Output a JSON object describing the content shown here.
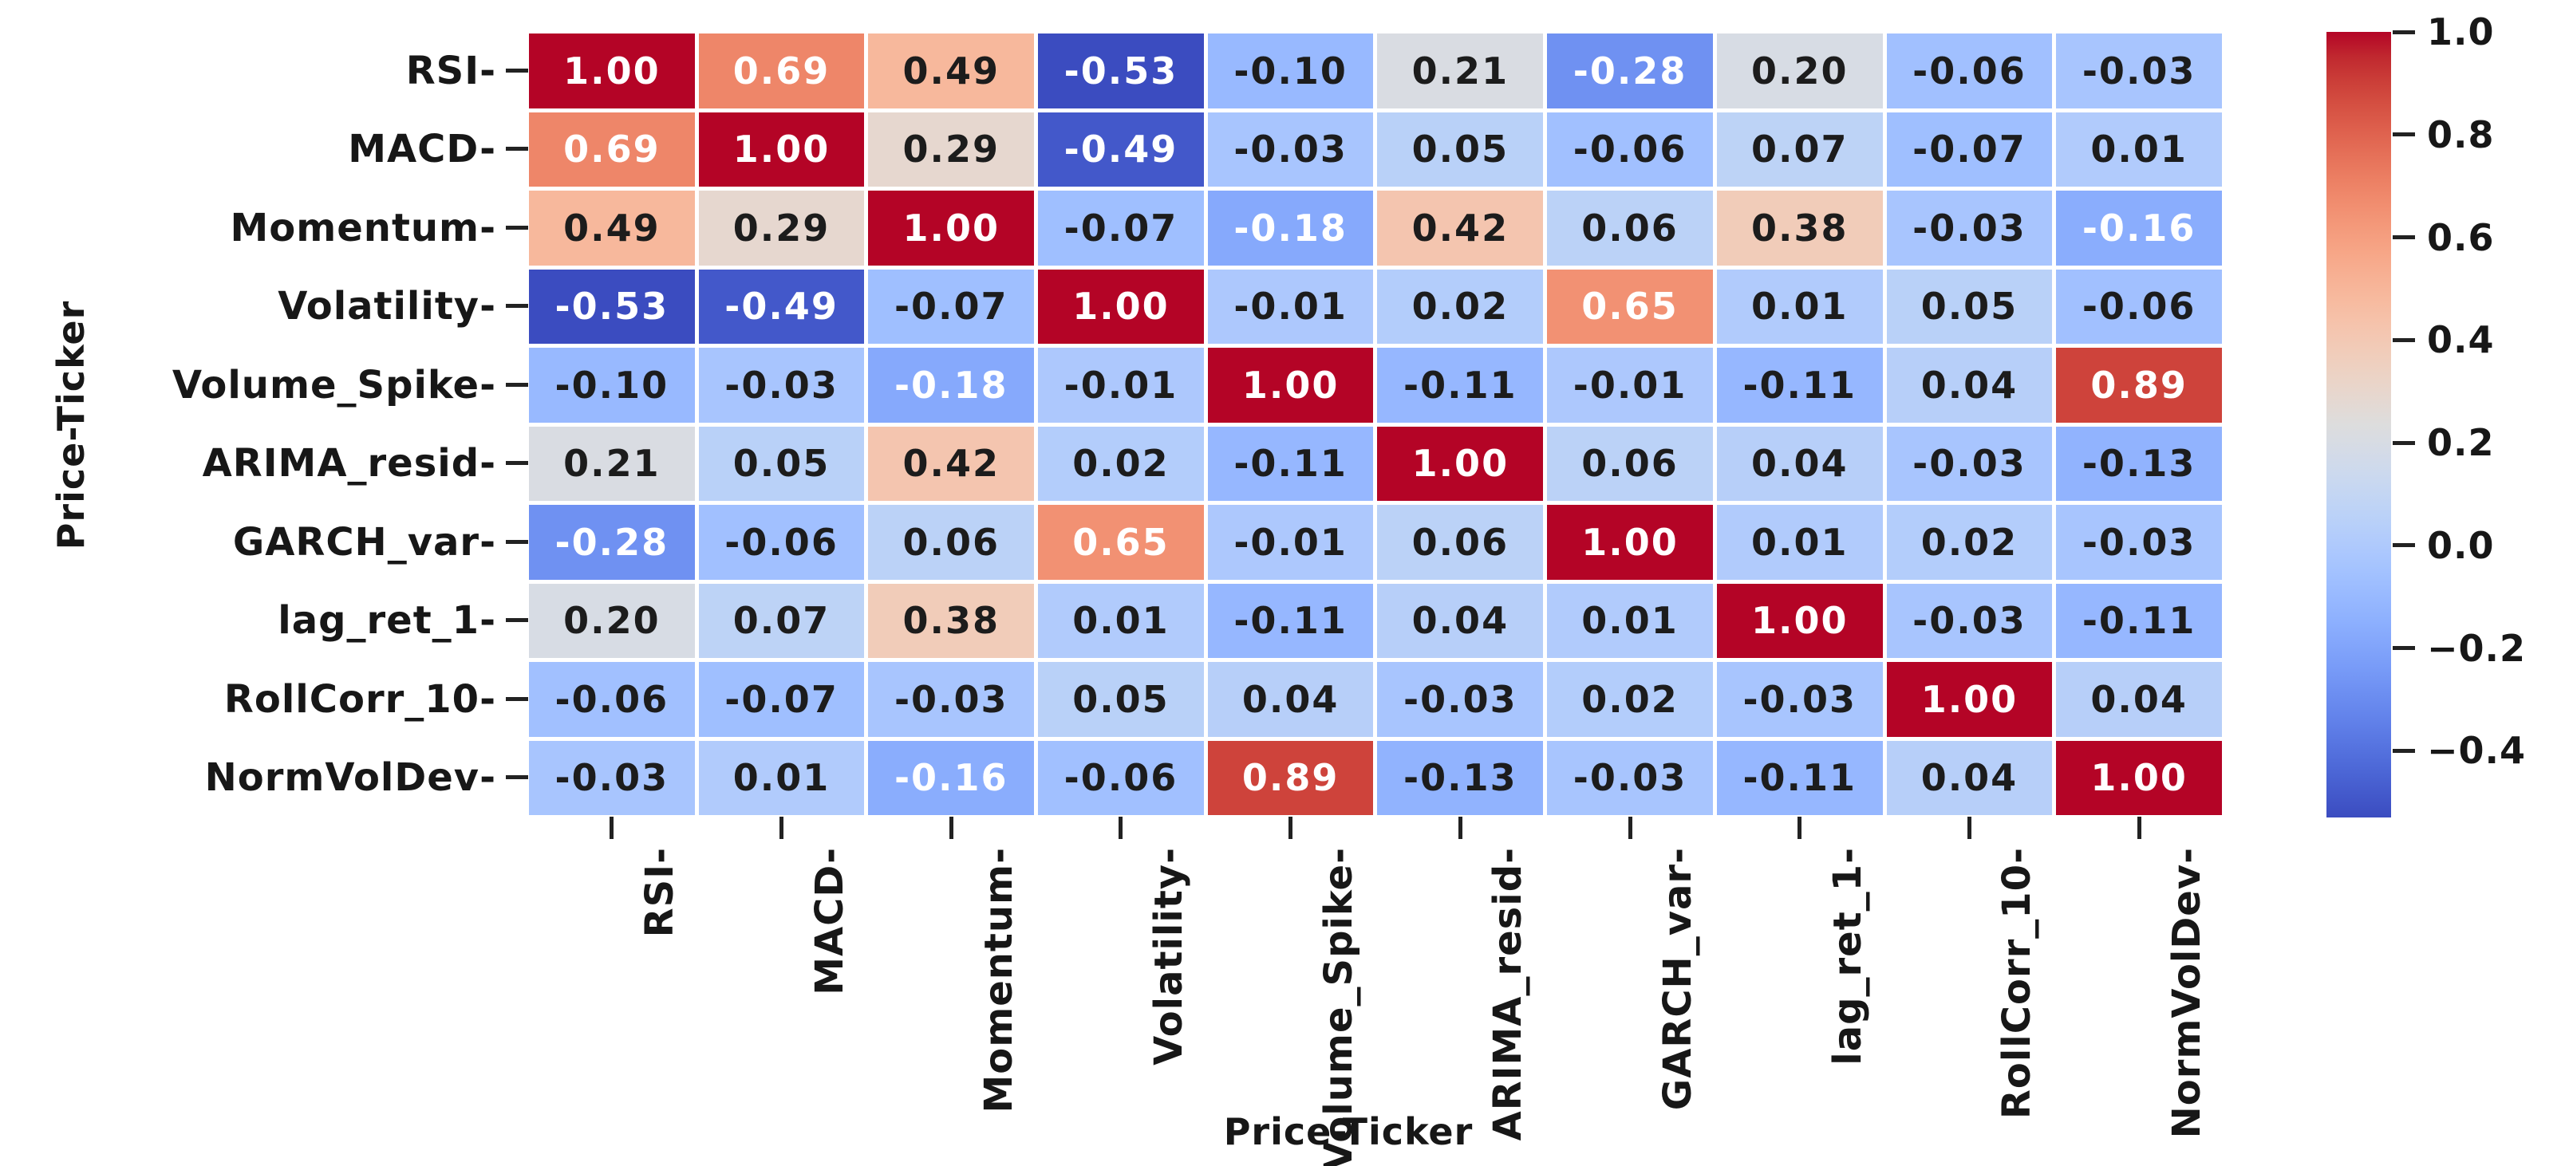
{
  "figure": {
    "background": "#ffffff"
  },
  "chart_data": {
    "type": "heatmap",
    "title": "",
    "xlabel": "Price-Ticker",
    "ylabel": "Price-Ticker",
    "x_labels": [
      "RSI-",
      "MACD-",
      "Momentum-",
      "Volatility-",
      "Volume_Spike-",
      "ARIMA_resid-",
      "GARCH_var-",
      "lag_ret_1-",
      "RollCorr_10-",
      "NormVolDev-"
    ],
    "y_labels": [
      "RSI-",
      "MACD-",
      "Momentum-",
      "Volatility-",
      "Volume_Spike-",
      "ARIMA_resid-",
      "GARCH_var-",
      "lag_ret_1-",
      "RollCorr_10-",
      "NormVolDev-"
    ],
    "matrix": [
      [
        1.0,
        0.69,
        0.49,
        -0.53,
        -0.1,
        0.21,
        -0.28,
        0.2,
        -0.06,
        -0.03
      ],
      [
        0.69,
        1.0,
        0.29,
        -0.49,
        -0.03,
        0.05,
        -0.06,
        0.07,
        -0.07,
        0.01
      ],
      [
        0.49,
        0.29,
        1.0,
        -0.07,
        -0.18,
        0.42,
        0.06,
        0.38,
        -0.03,
        -0.16
      ],
      [
        -0.53,
        -0.49,
        -0.07,
        1.0,
        -0.01,
        0.02,
        0.65,
        0.01,
        0.05,
        -0.06
      ],
      [
        -0.1,
        -0.03,
        -0.18,
        -0.01,
        1.0,
        -0.11,
        -0.01,
        -0.11,
        0.04,
        0.89
      ],
      [
        0.21,
        0.05,
        0.42,
        0.02,
        -0.11,
        1.0,
        0.06,
        0.04,
        -0.03,
        -0.13
      ],
      [
        -0.28,
        -0.06,
        0.06,
        0.65,
        -0.01,
        0.06,
        1.0,
        0.01,
        0.02,
        -0.03
      ],
      [
        0.2,
        0.07,
        0.38,
        0.01,
        -0.11,
        0.04,
        0.01,
        1.0,
        -0.03,
        -0.11
      ],
      [
        -0.06,
        -0.07,
        -0.03,
        0.05,
        0.04,
        -0.03,
        0.02,
        -0.03,
        1.0,
        0.04
      ],
      [
        -0.03,
        0.01,
        -0.16,
        -0.06,
        0.89,
        -0.13,
        -0.03,
        -0.11,
        0.04,
        1.0
      ]
    ],
    "annotation_format": "2-decimals",
    "vmin": -0.53,
    "vmax": 1.0,
    "colormap": "coolwarm",
    "grid": false,
    "colorbar": {
      "position": "right",
      "tick_values": [
        1.0,
        0.8,
        0.6,
        0.4,
        0.2,
        0.0,
        -0.2,
        -0.4
      ],
      "tick_labels": [
        "1.0",
        "0.8",
        "0.6",
        "0.4",
        "0.2",
        "0.0",
        "−0.2",
        "−0.4"
      ]
    }
  },
  "colors": {
    "background": "#ffffff",
    "tick_color": "#222222",
    "text_dark": "#1c1c1c",
    "text_light": "#ffffff",
    "text_luminance_threshold": 0.43,
    "cmap_stops": [
      "#3B4CC0",
      "#445ACC",
      "#4D68D7",
      "#5775E1",
      "#6282EA",
      "#6C8EF1",
      "#779AF7",
      "#82A5FB",
      "#8DB0FE",
      "#98B9FF",
      "#A3C2FF",
      "#AEC9FD",
      "#B8D0F9",
      "#C2D5F4",
      "#CCD9EE",
      "#D5DBE6",
      "#DDDDDD",
      "#E5D8D1",
      "#ECD3C5",
      "#F1CCB9",
      "#F5C4AD",
      "#F7BBA0",
      "#F7B194",
      "#F7A687",
      "#F49A7B",
      "#F18D6F",
      "#EC7F63",
      "#E57058",
      "#DE604D",
      "#D55042",
      "#CB3E38",
      "#C0282F",
      "#B40426"
    ]
  }
}
